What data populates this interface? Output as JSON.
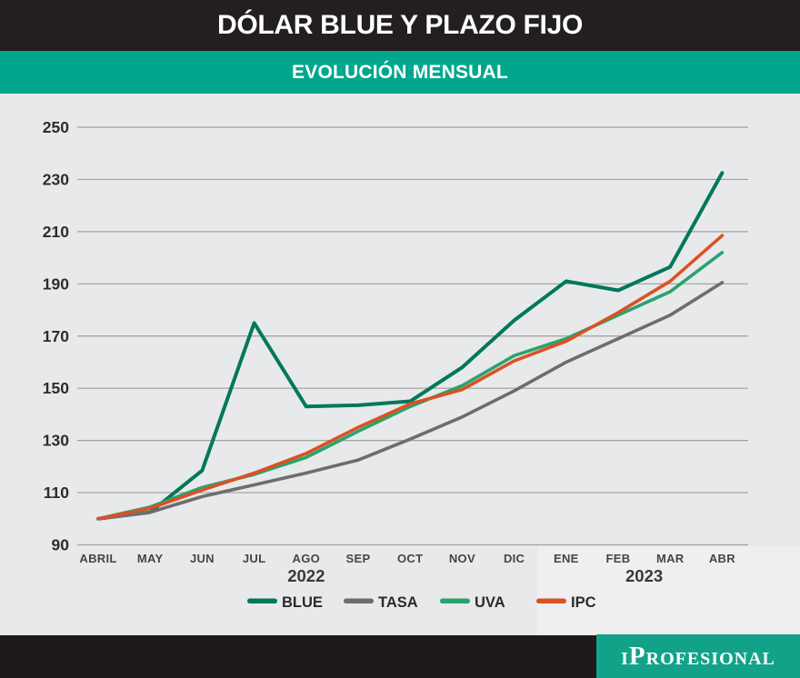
{
  "header": {
    "title": "DÓLAR BLUE Y PLAZO FIJO",
    "subtitle": "EVOLUCIÓN MENSUAL"
  },
  "footer": {
    "brand": "iProfesional"
  },
  "colors": {
    "header_bg": "#231f20",
    "accent_teal": "#00a78d",
    "footer_teal": "#12a28a",
    "chart_bg": "#e8e9ea",
    "grid": "#9fa0a2",
    "blue_line": "#00785b",
    "tasa_line": "#6c6d6f",
    "uva_line": "#29a36d",
    "ipc_line": "#da5126"
  },
  "chart_data": {
    "type": "line",
    "title": "DÓLAR BLUE Y PLAZO FIJO",
    "subtitle": "EVOLUCIÓN MENSUAL",
    "categories": [
      "ABRIL",
      "MAY",
      "JUN",
      "JUL",
      "AGO",
      "SEP",
      "OCT",
      "NOV",
      "DIC",
      "ENE",
      "FEB",
      "MAR",
      "ABR"
    ],
    "year_labels": [
      {
        "label": "2022",
        "month_index": 4
      },
      {
        "label": "2023",
        "month_index": 10.5
      }
    ],
    "ylim": [
      90,
      250
    ],
    "yticks": [
      90,
      110,
      130,
      150,
      170,
      190,
      210,
      230,
      250
    ],
    "grid": true,
    "legend_position": "bottom",
    "series": [
      {
        "name": "BLUE",
        "color": "#00785b",
        "values": [
          100,
          102.5,
          118.5,
          175,
          143,
          143.5,
          145,
          158,
          176,
          191,
          187.5,
          196.5,
          232.5
        ]
      },
      {
        "name": "TASA",
        "color": "#6c6d6f",
        "values": [
          100,
          102.5,
          108.5,
          113,
          117.5,
          122.5,
          130.5,
          139,
          149,
          160,
          169,
          178,
          190.5
        ]
      },
      {
        "name": "UVA",
        "color": "#29a36d",
        "values": [
          100,
          104.5,
          112,
          117,
          123.5,
          133.5,
          143,
          151,
          162.5,
          169,
          178,
          187,
          202
        ]
      },
      {
        "name": "IPC",
        "color": "#da5126",
        "values": [
          100,
          104,
          111,
          117.5,
          125,
          135,
          144,
          149.5,
          160.5,
          168,
          179,
          191,
          208.5
        ]
      }
    ]
  }
}
